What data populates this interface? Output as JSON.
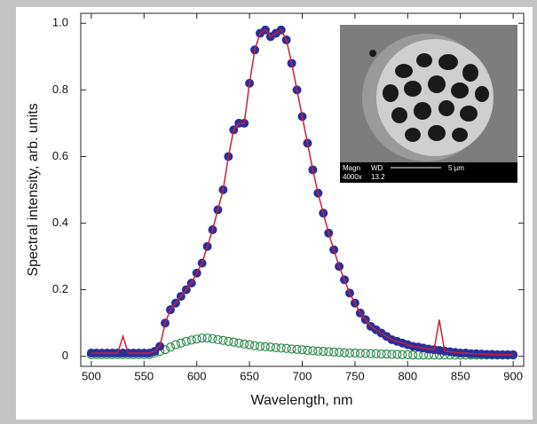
{
  "chart_data": {
    "type": "line",
    "x_label": "Wavelength, nm",
    "y_label": "Spectral intensity, arb. units",
    "xlim": [
      490,
      910
    ],
    "ylim": [
      -0.03,
      1.03
    ],
    "xticks": [
      500,
      550,
      600,
      650,
      700,
      750,
      800,
      850,
      900
    ],
    "yticks": [
      0,
      0.2,
      0.4,
      0.6,
      0.8,
      {
        "value": 1,
        "label": "1.0"
      }
    ],
    "x": [
      500,
      505,
      510,
      515,
      520,
      525,
      530,
      535,
      540,
      545,
      550,
      555,
      560,
      565,
      570,
      575,
      580,
      585,
      590,
      595,
      600,
      605,
      610,
      615,
      620,
      625,
      630,
      635,
      640,
      645,
      650,
      655,
      660,
      665,
      670,
      675,
      680,
      685,
      690,
      695,
      700,
      705,
      710,
      715,
      720,
      725,
      730,
      735,
      740,
      745,
      750,
      755,
      760,
      765,
      770,
      775,
      780,
      785,
      790,
      795,
      800,
      805,
      810,
      815,
      820,
      825,
      830,
      835,
      840,
      845,
      850,
      855,
      860,
      865,
      870,
      875,
      880,
      885,
      890,
      895,
      900
    ],
    "series": [
      {
        "style": "markers",
        "color": "#2b2f9a",
        "values": [
          0.01,
          0.01,
          0.01,
          0.01,
          0.01,
          0.01,
          0.01,
          0.01,
          0.01,
          0.01,
          0.01,
          0.01,
          0.015,
          0.03,
          0.1,
          0.14,
          0.16,
          0.18,
          0.2,
          0.22,
          0.25,
          0.28,
          0.33,
          0.38,
          0.44,
          0.5,
          0.6,
          0.68,
          0.7,
          0.7,
          0.82,
          0.92,
          0.97,
          0.98,
          0.96,
          0.97,
          0.98,
          0.95,
          0.88,
          0.8,
          0.72,
          0.64,
          0.56,
          0.49,
          0.43,
          0.37,
          0.32,
          0.27,
          0.23,
          0.19,
          0.16,
          0.13,
          0.11,
          0.09,
          0.08,
          0.07,
          0.06,
          0.05,
          0.045,
          0.04,
          0.035,
          0.03,
          0.028,
          0.025,
          0.022,
          0.02,
          0.018,
          0.016,
          0.014,
          0.012,
          0.01,
          0.01,
          0.008,
          0.008,
          0.007,
          0.006,
          0.006,
          0.005,
          0.005,
          0.005,
          0.005
        ]
      },
      {
        "style": "line",
        "color": "#c8203c",
        "values": [
          0.01,
          0.01,
          0.01,
          0.01,
          0.01,
          0.01,
          0.06,
          0.01,
          0.01,
          0.01,
          0.01,
          0.01,
          0.015,
          0.03,
          0.1,
          0.14,
          0.16,
          0.18,
          0.2,
          0.22,
          0.25,
          0.28,
          0.33,
          0.38,
          0.44,
          0.5,
          0.6,
          0.68,
          0.7,
          0.7,
          0.82,
          0.92,
          0.97,
          0.98,
          0.96,
          0.97,
          0.98,
          0.95,
          0.88,
          0.8,
          0.72,
          0.64,
          0.56,
          0.49,
          0.43,
          0.37,
          0.32,
          0.27,
          0.23,
          0.19,
          0.16,
          0.13,
          0.11,
          0.09,
          0.08,
          0.07,
          0.06,
          0.05,
          0.045,
          0.04,
          0.035,
          0.03,
          0.028,
          0.025,
          0.022,
          0.02,
          0.11,
          0.016,
          0.014,
          0.012,
          0.01,
          0.01,
          0.008,
          0.008,
          0.007,
          0.006,
          0.006,
          0.005,
          0.005,
          0.005,
          0.005
        ]
      },
      {
        "style": "open-markers",
        "color": "#2e8b4f",
        "values": [
          0.005,
          0.005,
          0.005,
          0.005,
          0.005,
          0.005,
          0.005,
          0.005,
          0.005,
          0.005,
          0.005,
          0.005,
          0.01,
          0.015,
          0.02,
          0.028,
          0.035,
          0.04,
          0.045,
          0.049,
          0.052,
          0.055,
          0.055,
          0.053,
          0.05,
          0.048,
          0.045,
          0.043,
          0.04,
          0.037,
          0.035,
          0.032,
          0.03,
          0.029,
          0.028,
          0.026,
          0.025,
          0.024,
          0.022,
          0.021,
          0.02,
          0.018,
          0.017,
          0.016,
          0.015,
          0.014,
          0.013,
          0.012,
          0.011,
          0.01,
          0.01,
          0.009,
          0.009,
          0.008,
          0.008,
          0.007,
          0.007,
          0.006,
          0.006,
          0.005,
          0.005,
          0.004,
          0.004,
          0.004,
          0.004,
          0.004,
          0.004,
          0.004,
          0.004,
          0.004,
          0.004,
          0.004,
          0.004,
          0.004,
          0.004,
          0.004,
          0.004,
          0.004,
          0.004,
          0.004,
          0.004
        ]
      }
    ],
    "inset": {
      "magn_label": "Magn",
      "wd_label": "WD",
      "scale_label": "5 µm",
      "magn_value": "4000x",
      "wd_value": "13.2"
    }
  }
}
